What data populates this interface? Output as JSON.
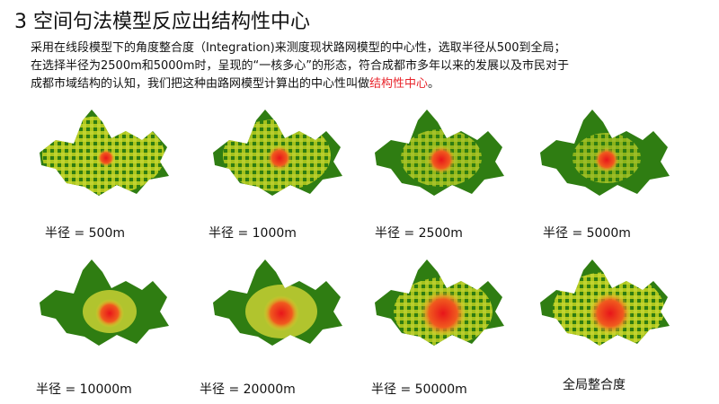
{
  "header": {
    "title": "3 空间句法模型反应出结构性中心"
  },
  "body": {
    "line1": "采用在线段模型下的角度整合度（Integration)来测度现状路网模型的中心性，选取半径从500到全局；",
    "line2": "在选择半径为2500m和5000m时，呈现的“一核多心”的形态，符合成都市多年以来的发展以及市民对于",
    "line3": "成都市域结构的认知，我们把这种由路网模型计算出的中心性叫做",
    "highlight": "结构性中心",
    "end": "。"
  },
  "maps": [
    {
      "caption": "半径 = 500m"
    },
    {
      "caption": "半径 = 1000m"
    },
    {
      "caption": "半径 = 2500m"
    },
    {
      "caption": "半径 = 5000m"
    },
    {
      "caption": "半径 = 10000m"
    },
    {
      "caption": "半径 = 20000m"
    },
    {
      "caption": "半径 = 50000m"
    },
    {
      "caption": "全局整合度"
    }
  ]
}
